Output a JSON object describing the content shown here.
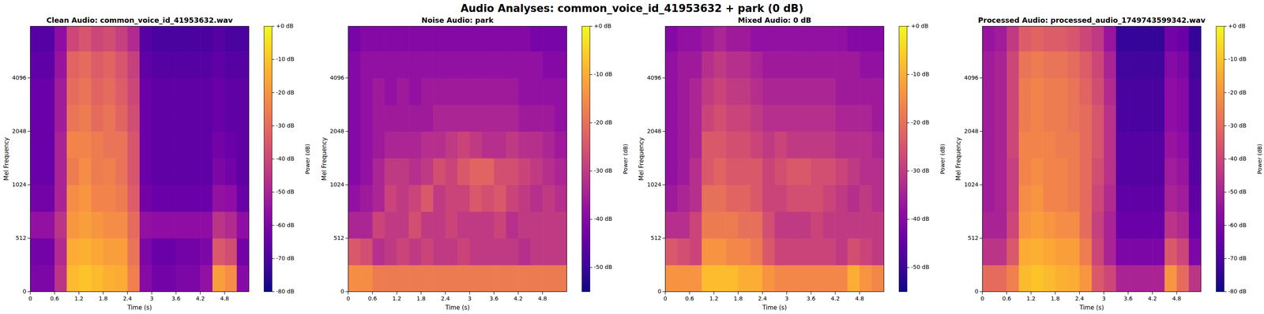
{
  "title": "Audio Analyses: common_voice_id_41953632 + park (0 dB)",
  "chart_data": [
    {
      "type": "heatmap",
      "title": "Clean Audio: common_voice_id_41953632.wav",
      "x_label": "Time (s)",
      "y_label": "Mel Frequency",
      "xlim": [
        0,
        5.4
      ],
      "xticks": [
        0,
        0.6,
        1.2,
        1.8,
        2.4,
        3,
        3.6,
        4.2,
        4.8
      ],
      "ylim": [
        0,
        8000
      ],
      "yticks": [
        0,
        512,
        1024,
        2048,
        4096
      ],
      "log": "y",
      "color": "plasma",
      "time_edges": [
        0,
        0.3,
        0.6,
        0.9,
        1.2,
        1.5,
        1.8,
        2.1,
        2.4,
        2.7,
        3.0,
        3.3,
        3.6,
        3.9,
        4.2,
        4.5,
        4.8,
        5.1,
        5.4
      ],
      "freq_edges": [
        0,
        256,
        512,
        724,
        1024,
        1448,
        2048,
        2896,
        4096,
        5793,
        8000
      ],
      "z": [
        [
          -60,
          -60,
          -45,
          -12,
          -10,
          -12,
          -14,
          -15,
          -25,
          -58,
          -62,
          -62,
          -60,
          -60,
          -55,
          -18,
          -22,
          -58
        ],
        [
          -62,
          -62,
          -48,
          -15,
          -14,
          -16,
          -18,
          -18,
          -28,
          -60,
          -64,
          -64,
          -62,
          -62,
          -60,
          -35,
          -38,
          -62
        ],
        [
          -55,
          -55,
          -45,
          -20,
          -18,
          -20,
          -22,
          -22,
          -30,
          -55,
          -56,
          -56,
          -56,
          -56,
          -56,
          -45,
          -48,
          -56
        ],
        [
          -62,
          -62,
          -50,
          -22,
          -20,
          -24,
          -24,
          -26,
          -34,
          -62,
          -64,
          -64,
          -64,
          -64,
          -64,
          -55,
          -56,
          -64
        ],
        [
          -64,
          -64,
          -50,
          -26,
          -22,
          -26,
          -25,
          -28,
          -36,
          -64,
          -66,
          -66,
          -66,
          -66,
          -66,
          -60,
          -62,
          -66
        ],
        [
          -64,
          -64,
          -50,
          -24,
          -24,
          -26,
          -28,
          -28,
          -36,
          -64,
          -66,
          -66,
          -66,
          -66,
          -66,
          -62,
          -64,
          -66
        ],
        [
          -64,
          -64,
          -52,
          -28,
          -26,
          -30,
          -28,
          -32,
          -38,
          -64,
          -66,
          -66,
          -66,
          -66,
          -66,
          -64,
          -66,
          -66
        ],
        [
          -64,
          -64,
          -52,
          -30,
          -28,
          -32,
          -30,
          -34,
          -40,
          -64,
          -66,
          -66,
          -66,
          -66,
          -66,
          -64,
          -66,
          -66
        ],
        [
          -66,
          -66,
          -54,
          -32,
          -30,
          -34,
          -32,
          -36,
          -42,
          -66,
          -68,
          -68,
          -68,
          -68,
          -68,
          -66,
          -68,
          -68
        ],
        [
          -68,
          -68,
          -56,
          -40,
          -36,
          -40,
          -38,
          -42,
          -48,
          -68,
          -70,
          -70,
          -70,
          -70,
          -70,
          -68,
          -70,
          -70
        ]
      ],
      "colorbar": {
        "label": "Power (dB)",
        "range": [
          -80,
          0
        ],
        "ticks": [
          {
            "value": 0,
            "label": "+0 dB"
          },
          {
            "value": -10,
            "label": "-10 dB"
          },
          {
            "value": -20,
            "label": "-20 dB"
          },
          {
            "value": -30,
            "label": "-30 dB"
          },
          {
            "value": -40,
            "label": "-40 dB"
          },
          {
            "value": -50,
            "label": "-50 dB"
          },
          {
            "value": -60,
            "label": "-60 dB"
          },
          {
            "value": -70,
            "label": "-70 dB"
          },
          {
            "value": -80,
            "label": "-80 dB"
          }
        ]
      }
    },
    {
      "type": "heatmap",
      "title": "Noise Audio: park",
      "x_label": "Time (s)",
      "y_label": "Mel Frequency",
      "xlim": [
        0,
        5.4
      ],
      "xticks": [
        0,
        0.6,
        1.2,
        1.8,
        2.4,
        3,
        3.6,
        4.2,
        4.8
      ],
      "ylim": [
        0,
        8000
      ],
      "yticks": [
        0,
        512,
        1024,
        2048,
        4096
      ],
      "log": "y",
      "color": "plasma",
      "time_edges": [
        0,
        0.3,
        0.6,
        0.9,
        1.2,
        1.5,
        1.8,
        2.1,
        2.4,
        2.7,
        3.0,
        3.3,
        3.6,
        3.9,
        4.2,
        4.5,
        4.8,
        5.1,
        5.4
      ],
      "freq_edges": [
        0,
        256,
        512,
        724,
        1024,
        1448,
        2048,
        2896,
        4096,
        5793,
        8000
      ],
      "z": [
        [
          -15,
          -15,
          -18,
          -18,
          -18,
          -18,
          -18,
          -18,
          -18,
          -18,
          -18,
          -18,
          -18,
          -18,
          -18,
          -18,
          -18,
          -18
        ],
        [
          -24,
          -26,
          -32,
          -30,
          -28,
          -30,
          -28,
          -30,
          -30,
          -28,
          -30,
          -30,
          -30,
          -30,
          -32,
          -30,
          -30,
          -30
        ],
        [
          -34,
          -34,
          -28,
          -30,
          -30,
          -26,
          -30,
          -30,
          -28,
          -30,
          -30,
          -30,
          -28,
          -32,
          -30,
          -30,
          -30,
          -30
        ],
        [
          -38,
          -36,
          -34,
          -28,
          -30,
          -28,
          -24,
          -30,
          -28,
          -28,
          -24,
          -26,
          -24,
          -28,
          -30,
          -32,
          -30,
          -32
        ],
        [
          -40,
          -38,
          -34,
          -30,
          -30,
          -32,
          -30,
          -26,
          -28,
          -24,
          -22,
          -22,
          -26,
          -26,
          -28,
          -30,
          -32,
          -34
        ],
        [
          -40,
          -38,
          -36,
          -34,
          -34,
          -34,
          -32,
          -32,
          -30,
          -28,
          -30,
          -32,
          -32,
          -30,
          -32,
          -32,
          -34,
          -36
        ],
        [
          -40,
          -38,
          -36,
          -36,
          -36,
          -36,
          -36,
          -34,
          -34,
          -34,
          -34,
          -34,
          -34,
          -34,
          -36,
          -36,
          -36,
          -38
        ],
        [
          -40,
          -38,
          -36,
          -38,
          -36,
          -38,
          -36,
          -36,
          -36,
          -36,
          -36,
          -36,
          -36,
          -36,
          -38,
          -38,
          -38,
          -38
        ],
        [
          -40,
          -38,
          -38,
          -38,
          -38,
          -38,
          -38,
          -38,
          -38,
          -38,
          -38,
          -38,
          -38,
          -38,
          -38,
          -38,
          -40,
          -40
        ],
        [
          -42,
          -40,
          -40,
          -40,
          -40,
          -40,
          -40,
          -40,
          -40,
          -40,
          -40,
          -40,
          -40,
          -40,
          -40,
          -42,
          -42,
          -42
        ]
      ],
      "colorbar": {
        "label": "Power (dB)",
        "range": [
          -55,
          0
        ],
        "ticks": [
          {
            "value": 0,
            "label": "+0 dB"
          },
          {
            "value": -10,
            "label": "-10 dB"
          },
          {
            "value": -20,
            "label": "-20 dB"
          },
          {
            "value": -30,
            "label": "-30 dB"
          },
          {
            "value": -40,
            "label": "-40 dB"
          },
          {
            "value": -50,
            "label": "-50 dB"
          }
        ]
      }
    },
    {
      "type": "heatmap",
      "title": "Mixed Audio: 0 dB",
      "x_label": "Time (s)",
      "y_label": "Mel Frequency",
      "xlim": [
        0,
        5.4
      ],
      "xticks": [
        0,
        0.6,
        1.2,
        1.8,
        2.4,
        3,
        3.6,
        4.2,
        4.8
      ],
      "ylim": [
        0,
        8000
      ],
      "yticks": [
        0,
        512,
        1024,
        2048,
        4096
      ],
      "log": "y",
      "color": "plasma",
      "time_edges": [
        0,
        0.3,
        0.6,
        0.9,
        1.2,
        1.5,
        1.8,
        2.1,
        2.4,
        2.7,
        3.0,
        3.3,
        3.6,
        3.9,
        4.2,
        4.5,
        4.8,
        5.1,
        5.4
      ],
      "freq_edges": [
        0,
        256,
        512,
        724,
        1024,
        1448,
        2048,
        2896,
        4096,
        5793,
        8000
      ],
      "z": [
        [
          -14,
          -14,
          -14,
          -8,
          -8,
          -8,
          -10,
          -10,
          -14,
          -16,
          -16,
          -16,
          -16,
          -16,
          -16,
          -10,
          -14,
          -16
        ],
        [
          -24,
          -26,
          -28,
          -14,
          -14,
          -16,
          -16,
          -18,
          -24,
          -28,
          -28,
          -28,
          -28,
          -28,
          -30,
          -26,
          -28,
          -30
        ],
        [
          -32,
          -32,
          -28,
          -18,
          -18,
          -18,
          -20,
          -20,
          -26,
          -30,
          -30,
          -30,
          -28,
          -30,
          -30,
          -30,
          -30,
          -30
        ],
        [
          -36,
          -34,
          -32,
          -20,
          -20,
          -22,
          -22,
          -24,
          -28,
          -28,
          -26,
          -26,
          -26,
          -28,
          -30,
          -32,
          -30,
          -32
        ],
        [
          -38,
          -36,
          -32,
          -24,
          -22,
          -24,
          -24,
          -24,
          -28,
          -26,
          -24,
          -24,
          -26,
          -26,
          -28,
          -30,
          -32,
          -32
        ],
        [
          -38,
          -36,
          -34,
          -24,
          -24,
          -26,
          -26,
          -28,
          -30,
          -28,
          -30,
          -30,
          -30,
          -30,
          -32,
          -32,
          -32,
          -34
        ],
        [
          -38,
          -36,
          -34,
          -28,
          -26,
          -28,
          -28,
          -30,
          -32,
          -32,
          -32,
          -32,
          -32,
          -32,
          -34,
          -34,
          -34,
          -36
        ],
        [
          -38,
          -36,
          -34,
          -30,
          -28,
          -30,
          -30,
          -32,
          -34,
          -34,
          -34,
          -34,
          -34,
          -34,
          -36,
          -36,
          -36,
          -36
        ],
        [
          -38,
          -36,
          -36,
          -32,
          -30,
          -32,
          -32,
          -34,
          -36,
          -36,
          -36,
          -36,
          -36,
          -36,
          -36,
          -36,
          -38,
          -38
        ],
        [
          -40,
          -38,
          -38,
          -36,
          -34,
          -36,
          -36,
          -38,
          -38,
          -38,
          -38,
          -38,
          -38,
          -38,
          -38,
          -40,
          -40,
          -40
        ]
      ],
      "colorbar": {
        "label": "Power (dB)",
        "range": [
          -55,
          0
        ],
        "ticks": [
          {
            "value": 0,
            "label": "+0 dB"
          },
          {
            "value": -10,
            "label": "-10 dB"
          },
          {
            "value": -20,
            "label": "-20 dB"
          },
          {
            "value": -30,
            "label": "-30 dB"
          },
          {
            "value": -40,
            "label": "-40 dB"
          },
          {
            "value": -50,
            "label": "-50 dB"
          }
        ]
      }
    },
    {
      "type": "heatmap",
      "title": "Processed Audio: processed_audio_1749743599342.wav",
      "x_label": "Time (s)",
      "y_label": "Mel Frequency",
      "xlim": [
        0,
        5.4
      ],
      "xticks": [
        0,
        0.6,
        1.2,
        1.8,
        2.4,
        3,
        3.6,
        4.2,
        4.8
      ],
      "ylim": [
        0,
        8000
      ],
      "yticks": [
        0,
        512,
        1024,
        2048,
        4096
      ],
      "log": "y",
      "color": "plasma",
      "time_edges": [
        0,
        0.3,
        0.6,
        0.9,
        1.2,
        1.5,
        1.8,
        2.1,
        2.4,
        2.7,
        3.0,
        3.3,
        3.6,
        3.9,
        4.2,
        4.5,
        4.8,
        5.1,
        5.4
      ],
      "freq_edges": [
        0,
        256,
        512,
        724,
        1024,
        1448,
        2048,
        2896,
        4096,
        5793,
        8000
      ],
      "z": [
        [
          -30,
          -30,
          -25,
          -12,
          -10,
          -12,
          -14,
          -15,
          -20,
          -35,
          -40,
          -50,
          -50,
          -50,
          -50,
          -20,
          -30,
          -45
        ],
        [
          -45,
          -45,
          -35,
          -15,
          -14,
          -16,
          -18,
          -18,
          -26,
          -40,
          -50,
          -60,
          -60,
          -60,
          -60,
          -35,
          -40,
          -60
        ],
        [
          -50,
          -50,
          -40,
          -20,
          -18,
          -20,
          -22,
          -22,
          -30,
          -42,
          -50,
          -64,
          -64,
          -64,
          -64,
          -45,
          -48,
          -64
        ],
        [
          -52,
          -50,
          -42,
          -22,
          -20,
          -24,
          -24,
          -26,
          -30,
          -40,
          -48,
          -66,
          -66,
          -66,
          -66,
          -50,
          -52,
          -66
        ],
        [
          -52,
          -50,
          -42,
          -24,
          -22,
          -24,
          -24,
          -26,
          -30,
          -38,
          -46,
          -68,
          -68,
          -68,
          -68,
          -52,
          -54,
          -68
        ],
        [
          -52,
          -50,
          -40,
          -24,
          -24,
          -24,
          -26,
          -26,
          -30,
          -36,
          -46,
          -68,
          -68,
          -68,
          -68,
          -54,
          -56,
          -68
        ],
        [
          -52,
          -50,
          -40,
          -26,
          -24,
          -26,
          -26,
          -28,
          -30,
          -36,
          -46,
          -70,
          -70,
          -70,
          -70,
          -56,
          -58,
          -70
        ],
        [
          -52,
          -50,
          -40,
          -26,
          -24,
          -26,
          -26,
          -28,
          -32,
          -38,
          -48,
          -70,
          -70,
          -70,
          -70,
          -56,
          -58,
          -70
        ],
        [
          -52,
          -50,
          -40,
          -28,
          -26,
          -28,
          -28,
          -30,
          -34,
          -40,
          -50,
          -72,
          -72,
          -72,
          -72,
          -58,
          -60,
          -72
        ],
        [
          -54,
          -52,
          -44,
          -34,
          -32,
          -34,
          -34,
          -36,
          -40,
          -44,
          -54,
          -74,
          -74,
          -74,
          -74,
          -62,
          -64,
          -74
        ]
      ],
      "colorbar": {
        "label": "Power (dB)",
        "range": [
          -80,
          0
        ],
        "ticks": [
          {
            "value": 0,
            "label": "+0 dB"
          },
          {
            "value": -10,
            "label": "-10 dB"
          },
          {
            "value": -20,
            "label": "-20 dB"
          },
          {
            "value": -30,
            "label": "-30 dB"
          },
          {
            "value": -40,
            "label": "-40 dB"
          },
          {
            "value": -50,
            "label": "-50 dB"
          },
          {
            "value": -60,
            "label": "-60 dB"
          },
          {
            "value": -70,
            "label": "-70 dB"
          },
          {
            "value": -80,
            "label": "-80 dB"
          }
        ]
      }
    }
  ]
}
